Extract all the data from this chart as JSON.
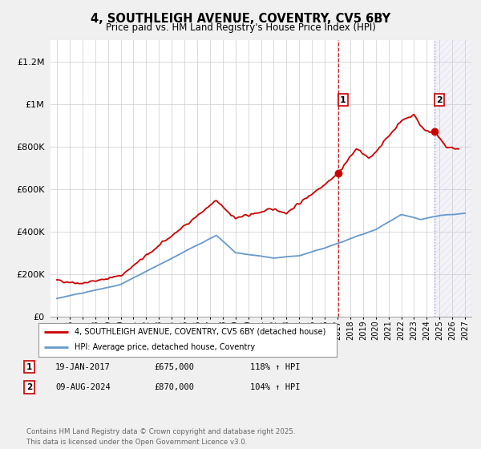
{
  "title": "4, SOUTHLEIGH AVENUE, COVENTRY, CV5 6BY",
  "subtitle": "Price paid vs. HM Land Registry's House Price Index (HPI)",
  "ylim": [
    0,
    1300000
  ],
  "xlim": [
    1994.5,
    2027.5
  ],
  "yticks": [
    0,
    200000,
    400000,
    600000,
    800000,
    1000000,
    1200000
  ],
  "ytick_labels": [
    "£0",
    "£200K",
    "£400K",
    "£600K",
    "£800K",
    "£1M",
    "£1.2M"
  ],
  "xticks": [
    1995,
    1996,
    1997,
    1998,
    1999,
    2000,
    2001,
    2002,
    2003,
    2004,
    2005,
    2006,
    2007,
    2008,
    2009,
    2010,
    2011,
    2012,
    2013,
    2014,
    2015,
    2016,
    2017,
    2018,
    2019,
    2020,
    2021,
    2022,
    2023,
    2024,
    2025,
    2026,
    2027
  ],
  "sale1_x": 2017.05,
  "sale1_y": 675000,
  "sale1_label": "1",
  "sale1_date": "19-JAN-2017",
  "sale1_price": "£675,000",
  "sale1_hpi": "118% ↑ HPI",
  "sale2_x": 2024.6,
  "sale2_y": 870000,
  "sale2_label": "2",
  "sale2_date": "09-AUG-2024",
  "sale2_price": "£870,000",
  "sale2_hpi": "104% ↑ HPI",
  "legend_line1": "4, SOUTHLEIGH AVENUE, COVENTRY, CV5 6BY (detached house)",
  "legend_line2": "HPI: Average price, detached house, Coventry",
  "footer": "Contains HM Land Registry data © Crown copyright and database right 2025.\nThis data is licensed under the Open Government Licence v3.0.",
  "line1_color": "#cc0000",
  "line2_color": "#6699cc",
  "bg_color": "#f0f0f0",
  "plot_bg_color": "#ffffff",
  "grid_color": "#cccccc",
  "sale_marker_color": "#cc0000",
  "vline1_color": "#cc0000",
  "vline2_color": "#8888cc",
  "hatch_color": "#aaaacc"
}
